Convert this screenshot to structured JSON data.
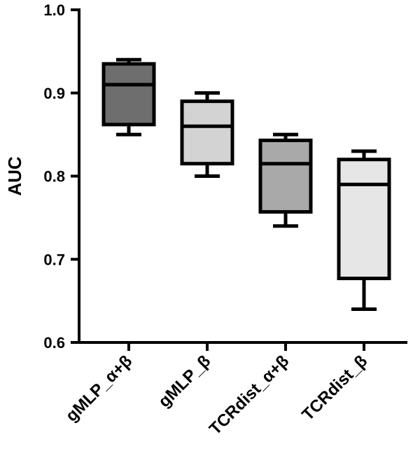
{
  "chart_data": {
    "type": "box",
    "title": "",
    "xlabel": "",
    "ylabel": "AUC",
    "ylim": [
      0.6,
      1.0
    ],
    "yticks": [
      0.6,
      0.7,
      0.8,
      0.9,
      1.0
    ],
    "ytick_labels": [
      "0.6",
      "0.7",
      "0.8",
      "0.9",
      "1.0"
    ],
    "grid": false,
    "legend": "none",
    "categories": [
      "gMLP_α+β",
      "gMLP_β",
      "TCRdist_α+β",
      "TCRdist_β"
    ],
    "series": [
      {
        "category": "gMLP_α+β",
        "min": 0.85,
        "q1": 0.862,
        "median": 0.91,
        "q3": 0.935,
        "max": 0.94,
        "color": "#6e6e6e"
      },
      {
        "category": "gMLP_β",
        "min": 0.8,
        "q1": 0.815,
        "median": 0.86,
        "q3": 0.89,
        "max": 0.9,
        "color": "#d3d3d3"
      },
      {
        "category": "TCRdist_α+β",
        "min": 0.74,
        "q1": 0.757,
        "median": 0.815,
        "q3": 0.843,
        "max": 0.85,
        "color": "#a9a9a9"
      },
      {
        "category": "TCRdist_β",
        "min": 0.64,
        "q1": 0.677,
        "median": 0.79,
        "q3": 0.82,
        "max": 0.83,
        "color": "#e6e6e6"
      }
    ]
  }
}
